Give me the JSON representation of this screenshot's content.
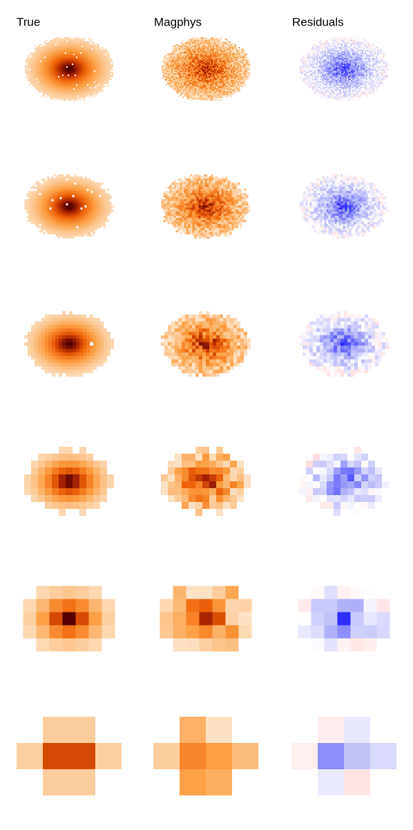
{
  "headers": [
    "True",
    "Magphys",
    "Residuals"
  ]
}
